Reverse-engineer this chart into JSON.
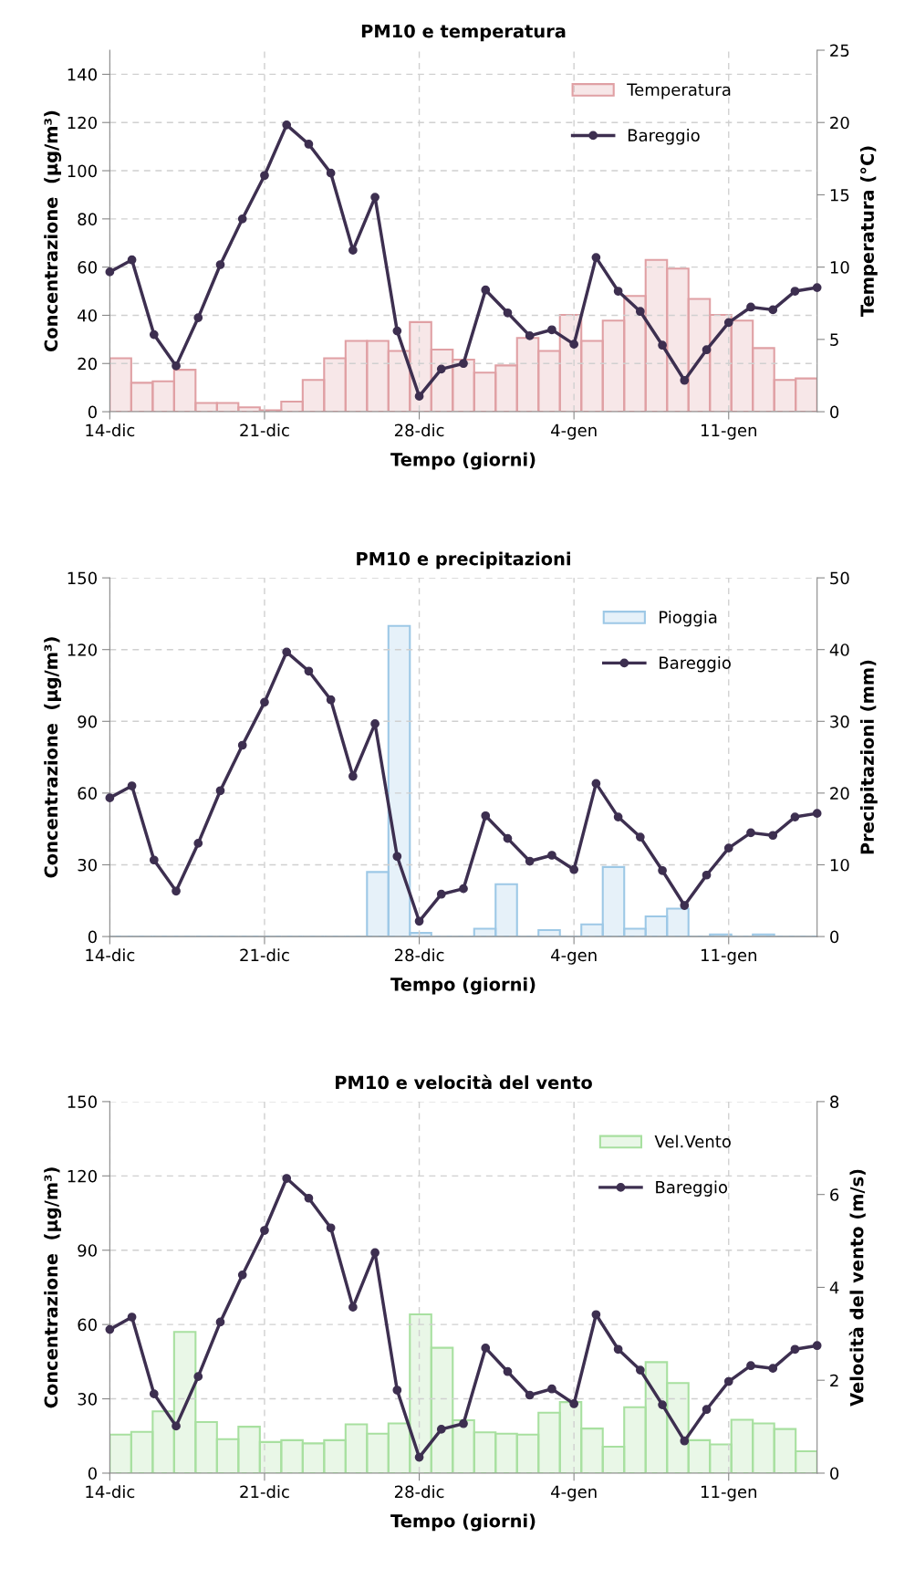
{
  "chart_data": [
    {
      "type": "bar",
      "title": "PM10 e temperatura",
      "xlabel": "Tempo (giorni)",
      "ylabel": "Concentrazione  (µg/m³)",
      "y2label": "Temperatura (°C)",
      "categories": [
        "14-dic",
        null,
        null,
        null,
        null,
        null,
        null,
        "21-dic",
        null,
        null,
        null,
        null,
        null,
        null,
        "28-dic",
        null,
        null,
        null,
        null,
        null,
        null,
        "4-gen",
        null,
        null,
        null,
        null,
        null,
        null,
        "11-gen",
        null,
        null,
        null,
        null
      ],
      "ylim": [
        0,
        150
      ],
      "yticks": [
        0,
        20,
        40,
        60,
        80,
        100,
        120,
        140
      ],
      "y2lim": [
        0,
        25
      ],
      "y2ticks": [
        0,
        5,
        10,
        15,
        20,
        25
      ],
      "grid": true,
      "legend": "top right",
      "marker": "circle",
      "line_style": "solid",
      "series": [
        {
          "name": "Temperatura",
          "axis": "y2",
          "color": "#e0a0a4",
          "values": [
            3.7,
            2.0,
            2.1,
            2.9,
            0.6,
            0.6,
            0.3,
            0.1,
            0.7,
            2.2,
            3.7,
            4.9,
            4.9,
            4.2,
            6.2,
            4.3,
            3.6,
            2.7,
            3.2,
            5.1,
            4.2,
            6.7,
            4.9,
            6.3,
            8.0,
            10.5,
            9.9,
            7.8,
            6.7,
            6.3,
            4.4,
            2.2,
            2.3
          ]
        },
        {
          "name": "Bareggio",
          "type": "line",
          "color": "#3d2f50",
          "values": [
            58,
            63,
            32,
            19,
            39,
            61,
            80,
            98,
            119,
            111,
            99,
            67,
            89,
            33.5,
            6.4,
            17.7,
            20,
            50.5,
            41,
            31.5,
            34,
            28,
            64,
            50,
            41.6,
            27.6,
            13,
            25.7,
            37,
            43.4,
            42.3,
            50,
            51.5
          ]
        }
      ]
    },
    {
      "type": "bar",
      "title": "PM10 e precipitazioni",
      "xlabel": "Tempo (giorni)",
      "ylabel": "Concentrazione  (µg/m³)",
      "y2label": "Precipitazioni (mm)",
      "categories": [
        "14-dic",
        null,
        null,
        null,
        null,
        null,
        null,
        "21-dic",
        null,
        null,
        null,
        null,
        null,
        null,
        "28-dic",
        null,
        null,
        null,
        null,
        null,
        null,
        "4-gen",
        null,
        null,
        null,
        null,
        null,
        null,
        "11-gen",
        null,
        null,
        null,
        null
      ],
      "ylim": [
        0,
        150
      ],
      "yticks": [
        0,
        30,
        60,
        90,
        120,
        150
      ],
      "y2lim": [
        0,
        50
      ],
      "y2ticks": [
        0,
        10,
        20,
        30,
        40,
        50
      ],
      "grid": true,
      "legend": "top right",
      "marker": "circle",
      "line_style": "solid",
      "series": [
        {
          "name": "Pioggia",
          "axis": "y2",
          "color": "#9dc8e6",
          "values": [
            0,
            0,
            0,
            0,
            0,
            0,
            0,
            0,
            0,
            0,
            0,
            0,
            9.0,
            43.3,
            0.5,
            0,
            0,
            1.1,
            7.3,
            0,
            0.9,
            0,
            1.7,
            9.7,
            1.1,
            2.8,
            3.9,
            0,
            0.3,
            0,
            0.3,
            0,
            0
          ]
        },
        {
          "name": "Bareggio",
          "type": "line",
          "color": "#3d2f50",
          "values": [
            58,
            63,
            32,
            19,
            39,
            61,
            80,
            98,
            119,
            111,
            99,
            67,
            89,
            33.5,
            6.4,
            17.7,
            20,
            50.5,
            41,
            31.5,
            34,
            28,
            64,
            50,
            41.6,
            27.6,
            13,
            25.7,
            37,
            43.4,
            42.3,
            50,
            51.5
          ]
        }
      ]
    },
    {
      "type": "bar",
      "title": "PM10 e velocità del vento",
      "xlabel": "Tempo (giorni)",
      "ylabel": "Concentrazione  (µg/m³)",
      "y2label": "Velocità del vento (m/s)",
      "categories": [
        "14-dic",
        null,
        null,
        null,
        null,
        null,
        null,
        "21-dic",
        null,
        null,
        null,
        null,
        null,
        null,
        "28-dic",
        null,
        null,
        null,
        null,
        null,
        null,
        "4-gen",
        null,
        null,
        null,
        null,
        null,
        null,
        "11-gen",
        null,
        null,
        null,
        null
      ],
      "ylim": [
        0,
        150
      ],
      "yticks": [
        0,
        30,
        60,
        90,
        120,
        150
      ],
      "y2lim": [
        0,
        8
      ],
      "y2ticks": [
        0,
        2,
        4,
        6,
        8
      ],
      "grid": true,
      "legend": "top right",
      "marker": "circle",
      "line_style": "solid",
      "series": [
        {
          "name": "Vel.Vento",
          "axis": "y2",
          "color": "#a8e0a0",
          "values": [
            0.83,
            0.89,
            1.33,
            3.04,
            1.1,
            0.73,
            1.0,
            0.67,
            0.71,
            0.64,
            0.71,
            1.05,
            0.85,
            1.07,
            3.42,
            2.7,
            1.14,
            0.88,
            0.85,
            0.83,
            1.3,
            1.53,
            0.96,
            0.57,
            1.42,
            2.39,
            1.94,
            0.71,
            0.62,
            1.15,
            1.07,
            0.95,
            0.47
          ]
        },
        {
          "name": "Bareggio",
          "type": "line",
          "color": "#3d2f50",
          "values": [
            58,
            63,
            32,
            19,
            39,
            61,
            80,
            98,
            119,
            111,
            99,
            67,
            89,
            33.5,
            6.4,
            17.7,
            20,
            50.5,
            41,
            31.5,
            34,
            28,
            64,
            50,
            41.6,
            27.6,
            13,
            25.7,
            37,
            43.4,
            42.3,
            50,
            51.5
          ]
        }
      ]
    }
  ]
}
